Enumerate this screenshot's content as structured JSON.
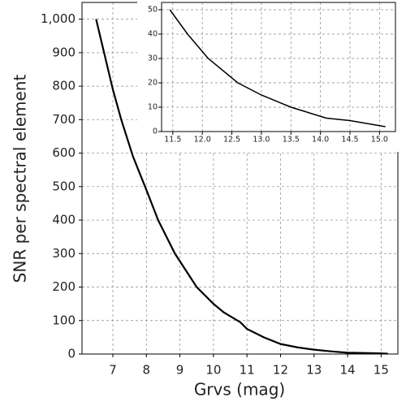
{
  "chart_data": [
    {
      "type": "line",
      "xlabel": "Grvs (mag)",
      "ylabel": "SNR per spectral element",
      "x": [
        6.5,
        7.0,
        7.25,
        7.6,
        8.0,
        8.35,
        8.85,
        9.5,
        10.0,
        10.3,
        10.8,
        11.0,
        11.5,
        12.0,
        12.5,
        13.0,
        13.5,
        14.0,
        14.5,
        15.0,
        15.2
      ],
      "values": [
        1000,
        790,
        700,
        590,
        490,
        400,
        300,
        200,
        150,
        125,
        95,
        75,
        50,
        30,
        20,
        13,
        8,
        4,
        3,
        2,
        1
      ],
      "color": "#000000",
      "xlim": [
        6.08,
        15.5
      ],
      "ylim": [
        0,
        1050
      ],
      "xticks": [
        7,
        8,
        9,
        10,
        11,
        12,
        13,
        14,
        15
      ],
      "yticks": [
        0,
        100,
        200,
        300,
        400,
        500,
        600,
        700,
        800,
        900,
        {
          "value": 1000,
          "label": "1,000"
        }
      ],
      "grid": true
    },
    {
      "type": "line",
      "x": [
        11.45,
        11.75,
        12.1,
        12.6,
        13.0,
        13.5,
        14.1,
        14.5,
        15.1
      ],
      "values": [
        50,
        40,
        30,
        20,
        15,
        10,
        5.5,
        4.5,
        2
      ],
      "color": "#000000",
      "xlim": [
        11.31,
        15.27
      ],
      "ylim": [
        0,
        53
      ],
      "xticks": [
        11.5,
        {
          "value": 12,
          "label": "12.0"
        },
        12.5,
        {
          "value": 13,
          "label": "13.0"
        },
        13.5,
        {
          "value": 14,
          "label": "14.0"
        },
        14.5,
        {
          "value": 15,
          "label": "15.0"
        }
      ],
      "yticks": [
        0,
        10,
        20,
        30,
        40,
        50
      ],
      "grid": true
    }
  ]
}
